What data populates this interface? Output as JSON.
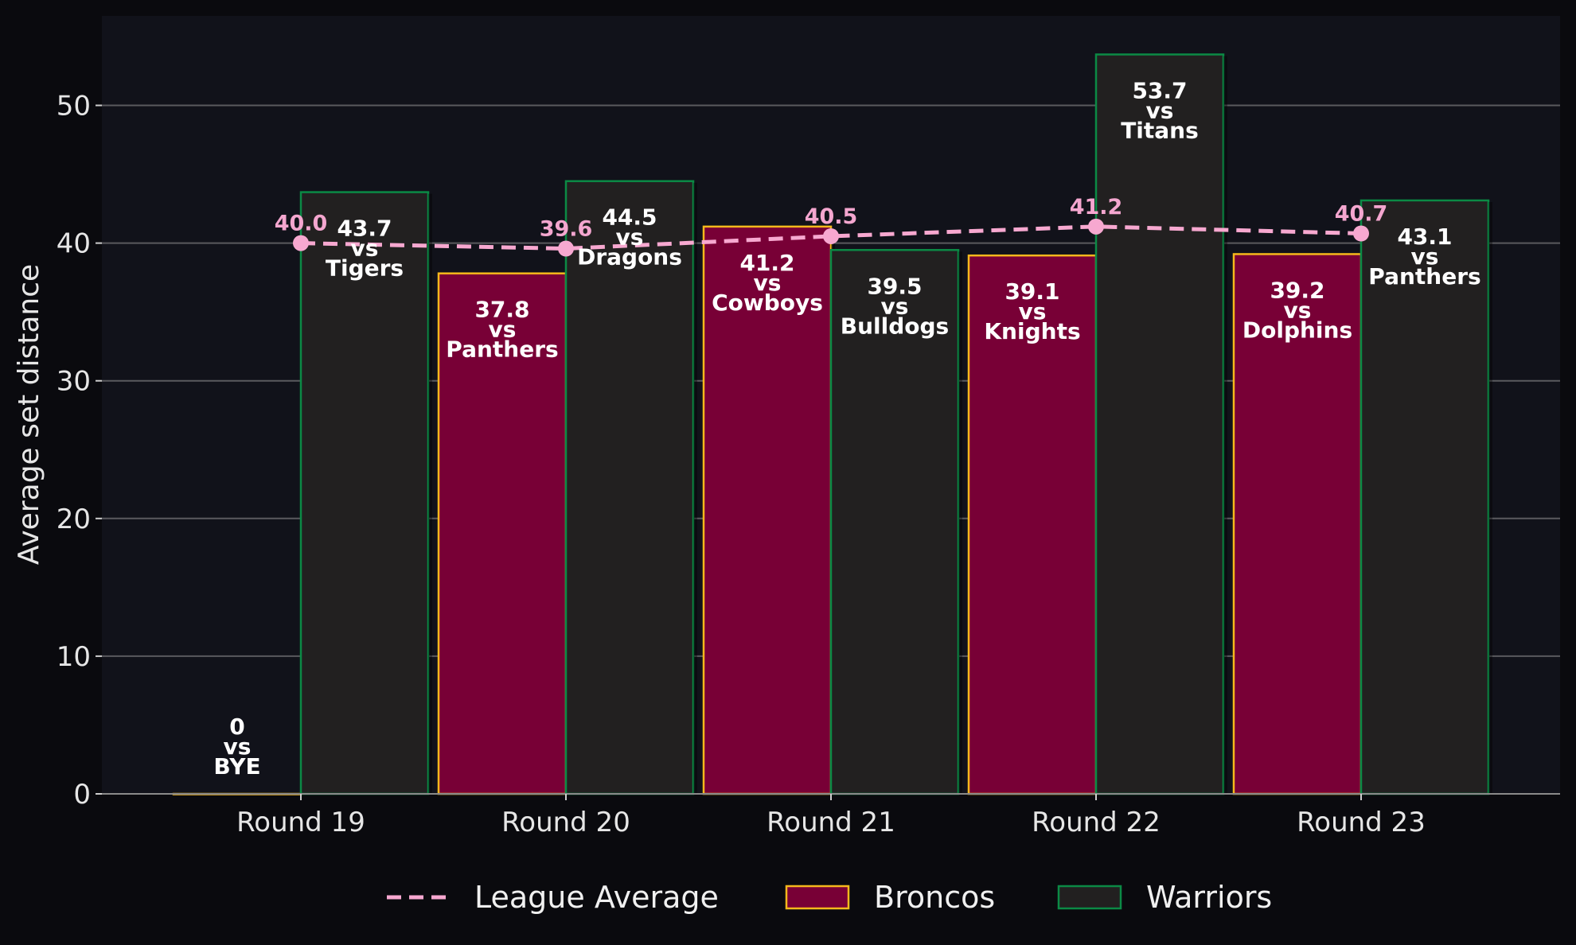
{
  "chart_data": {
    "type": "bar",
    "categories": [
      "Round 19",
      "Round 20",
      "Round 21",
      "Round 22",
      "Round 23"
    ],
    "ylabel": "Average set distance",
    "xlabel": "",
    "ylim": [
      0,
      56.5
    ],
    "yticks": [
      0,
      10,
      20,
      30,
      40,
      50
    ],
    "grid": true,
    "legend_position": "bottom",
    "series": [
      {
        "name": "Broncos",
        "kind": "bar",
        "values": [
          0,
          37.8,
          41.2,
          39.1,
          39.2
        ],
        "labels": [
          "0",
          "37.8",
          "41.2",
          "39.1",
          "39.2"
        ],
        "opponents": [
          "BYE",
          "Panthers",
          "Cowboys",
          "Knights",
          "Dolphins"
        ],
        "fill": "#780036",
        "edge": "#f5b81c"
      },
      {
        "name": "Warriors",
        "kind": "bar",
        "values": [
          43.7,
          44.5,
          39.5,
          53.7,
          43.1
        ],
        "labels": [
          "43.7",
          "44.5",
          "39.5",
          "53.7",
          "43.1"
        ],
        "opponents": [
          "Tigers",
          "Dragons",
          "Bulldogs",
          "Titans",
          "Panthers"
        ],
        "fill": "#222020",
        "edge": "#0b8a45"
      },
      {
        "name": "League Average",
        "kind": "line",
        "style": "dashed",
        "values": [
          40.0,
          39.6,
          40.5,
          41.2,
          40.7
        ],
        "labels": [
          "40.0",
          "39.6",
          "40.5",
          "41.2",
          "40.7"
        ],
        "color": "#f7a8d0"
      }
    ],
    "vs_word": "vs"
  },
  "colors": {
    "page_background": "#0a0a0e",
    "plot_background": "#11121a",
    "grid": "#5a5a5e",
    "text": "#e6e6e6"
  }
}
